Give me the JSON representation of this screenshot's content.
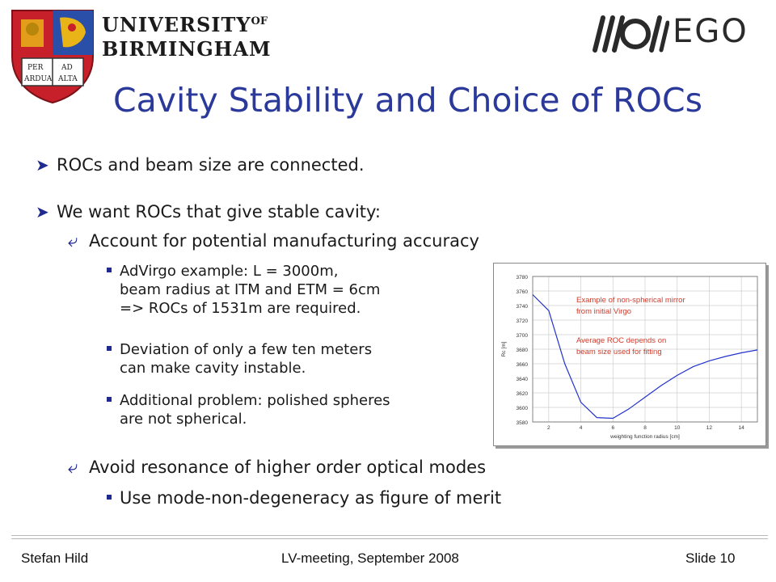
{
  "header": {
    "university_line1": "UNIVERSITY",
    "university_of": "OF",
    "university_line2": "BIRMINGHAM",
    "crest_text": [
      "PER",
      "AD",
      "ARDUA",
      "ALTA"
    ],
    "ego_label": "EGO"
  },
  "slide": {
    "title": "Cavity Stability and Choice of ROCs",
    "bullets": [
      {
        "text": "ROCs and beam size are connected."
      },
      {
        "text": "We want ROCs that give stable cavity:"
      }
    ],
    "sub_a": "Account for potential manufacturing accuracy",
    "sub_a_items": [
      {
        "lines": [
          "AdVirgo example: L = 3000m,",
          "beam radius at ITM and ETM = 6cm",
          "=> ROCs of 1531m are required."
        ]
      },
      {
        "lines": [
          "Deviation of only a few ten meters",
          "can make cavity instable."
        ]
      },
      {
        "lines": [
          "Additional problem: polished spheres",
          "are not spherical."
        ]
      }
    ],
    "sub_b": "Avoid resonance of higher order optical modes",
    "sub_b_items": [
      {
        "text": "Use mode-non-degeneracy as figure of merit"
      }
    ]
  },
  "chart_data": {
    "type": "line",
    "xlabel": "weighting function radius [cm]",
    "ylabel": "Rc [m]",
    "xlim": [
      1,
      15
    ],
    "ylim": [
      3580,
      3780
    ],
    "xticks": [
      2,
      4,
      6,
      8,
      10,
      12,
      14
    ],
    "yticks": [
      3580,
      3600,
      3620,
      3640,
      3660,
      3680,
      3700,
      3720,
      3740,
      3760,
      3780
    ],
    "grid": true,
    "series": [
      {
        "color": "#2233cc",
        "x": [
          1.0,
          2.0,
          3.0,
          4.0,
          5.0,
          6.0,
          7.0,
          8.0,
          9.0,
          10.0,
          11.0,
          12.0,
          13.0,
          14.0,
          15.0
        ],
        "y": [
          3755,
          3733,
          3660,
          3607,
          3586,
          3585,
          3598,
          3614,
          3630,
          3644,
          3656,
          3664,
          3670,
          3675,
          3679
        ]
      }
    ],
    "annotations": [
      {
        "text": "Example of non-spherical mirror",
        "color": "#d03a2a"
      },
      {
        "text": "from initial Virgo",
        "color": "#d03a2a"
      },
      {
        "text": "Average ROC depends on",
        "color": "#d03a2a"
      },
      {
        "text": "beam size used for fitting",
        "color": "#d03a2a"
      }
    ]
  },
  "footer": {
    "author": "Stefan Hild",
    "event": "LV-meeting, September 2008",
    "slide": "Slide 10"
  },
  "colors": {
    "title": "#2b3a9a",
    "accent": "#1f2a90",
    "annotation": "#d03a2a",
    "crest_red": "#c8202a",
    "crest_blue": "#2a4fa8",
    "crest_gold": "#e8b418"
  }
}
